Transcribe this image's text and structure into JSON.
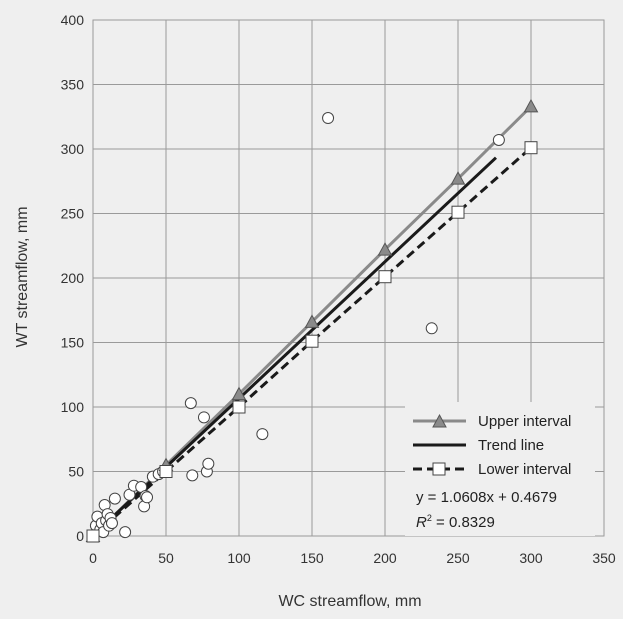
{
  "chart_data": {
    "type": "scatter",
    "xlabel": "WC streamflow, mm",
    "ylabel": "WT streamflow, mm",
    "xlim": [
      0,
      350
    ],
    "ylim": [
      0,
      400
    ],
    "xticks": [
      "0",
      "50",
      "100",
      "150",
      "200",
      "250",
      "300",
      "350"
    ],
    "yticks": [
      "0",
      "50",
      "100",
      "150",
      "200",
      "250",
      "300",
      "350",
      "400"
    ],
    "grid": true,
    "legend_position": "bottom-right",
    "colors": {
      "upper": "#8a8a8a",
      "trend": "#1a1a1a",
      "lower": "#1a1a1a",
      "background": "#efefef"
    },
    "observations": {
      "x": [
        2,
        3,
        5,
        6,
        7,
        8,
        9,
        10,
        11,
        12,
        13,
        15,
        22,
        25,
        28,
        33,
        35,
        36,
        37,
        41,
        45,
        48,
        67,
        68,
        76,
        78,
        79,
        116,
        161,
        232,
        278
      ],
      "y": [
        8,
        15,
        5,
        10,
        3,
        24,
        12,
        17,
        8,
        14,
        10,
        29,
        3,
        32,
        39,
        38,
        23,
        31,
        30,
        46,
        48,
        50,
        103,
        47,
        92,
        50,
        56,
        79,
        324,
        161,
        307
      ]
    },
    "series": [
      {
        "name": "Upper interval",
        "marker": "triangle",
        "x": [
          0,
          50,
          100,
          150,
          200,
          250,
          300
        ],
        "y": [
          0,
          55,
          110,
          166,
          222,
          277,
          333
        ]
      },
      {
        "name": "Trend line",
        "marker": "none",
        "x": [
          0,
          276
        ],
        "y": [
          0.4679,
          293.25
        ]
      },
      {
        "name": "Lower interval",
        "marker": "square",
        "x": [
          0,
          50,
          100,
          150,
          200,
          250,
          300
        ],
        "y": [
          0,
          50,
          100,
          151,
          201,
          251,
          301
        ]
      }
    ],
    "equation": "y = 1.0608x + 0.4679",
    "r2_prefix": "R",
    "r2_sup": "2",
    "r2_value": " = 0.8329"
  }
}
